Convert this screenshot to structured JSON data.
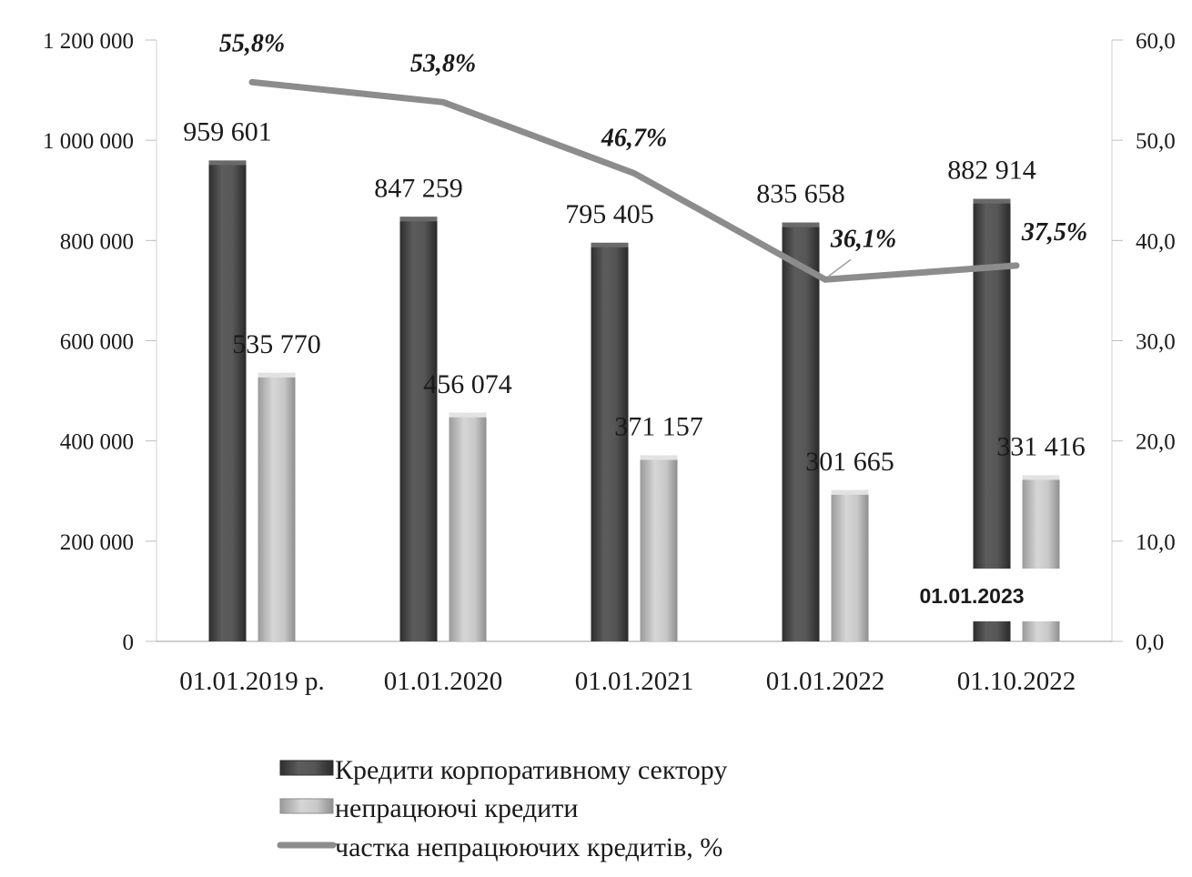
{
  "chart_data": {
    "type": "bar",
    "categories": [
      "01.01.2019 р.",
      "01.01.2020",
      "01.01.2021",
      "01.01.2022",
      "01.10.2022"
    ],
    "series": [
      {
        "name": "Кредити корпоративному сектору",
        "kind": "bar",
        "axis": "left",
        "values": [
          959601,
          847259,
          795405,
          835658,
          882914
        ],
        "labels": [
          "959 601",
          "847 259",
          "795 405",
          "835 658",
          "882 914"
        ],
        "color": "#4a4a4a"
      },
      {
        "name": "непрацюючі кредити",
        "kind": "bar",
        "axis": "left",
        "values": [
          535770,
          456074,
          371157,
          301665,
          331416
        ],
        "labels": [
          "535 770",
          "456 074",
          "371 157",
          "301 665",
          "331 416"
        ],
        "color": "#b8b8b8"
      },
      {
        "name": "частка непрацюючих кредитів, %",
        "kind": "line",
        "axis": "right",
        "values": [
          55.8,
          53.8,
          46.7,
          36.1,
          37.5
        ],
        "labels": [
          "55,8%",
          "53,8%",
          "46,7%",
          "36,1%",
          "37,5%"
        ],
        "color": "#8c8c8c"
      }
    ],
    "y_left": {
      "lim": [
        0,
        1200000
      ],
      "ticks": [
        0,
        200000,
        400000,
        600000,
        800000,
        1000000,
        1200000
      ],
      "tick_labels": [
        "0",
        "200 000",
        "400 000",
        "600 000",
        "800 000",
        "1 000 000",
        "1 200 000"
      ]
    },
    "y_right": {
      "lim": [
        0,
        60
      ],
      "ticks": [
        0,
        10,
        20,
        30,
        40,
        50,
        60
      ],
      "tick_labels": [
        "0,0",
        "10,0",
        "20,0",
        "30,0",
        "40,0",
        "50,0",
        "60,0"
      ]
    },
    "legend_position": "bottom",
    "grid": false,
    "overlay_label": "01.01.2023"
  }
}
